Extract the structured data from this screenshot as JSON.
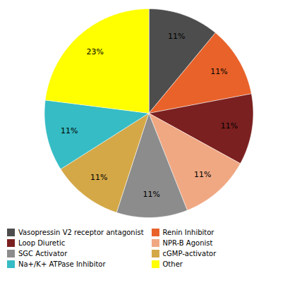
{
  "chart_data": {
    "type": "pie",
    "categories": [
      "Vasopressin V2 receptor antagonist",
      "Renin Inhibitor",
      "Loop Diuretic",
      "NPR-B Agonist",
      "SGC Activator",
      "cGMP-activator",
      "Na+/K+ ATPase Inhibitor",
      "Other"
    ],
    "values": [
      11,
      11,
      11,
      11,
      11,
      11,
      11,
      23
    ],
    "value_labels": [
      "11%",
      "11%",
      "11%",
      "11%",
      "11%",
      "11%",
      "11%",
      "23%"
    ],
    "colors": [
      "#4d4d4d",
      "#e8622a",
      "#7b2020",
      "#f0a883",
      "#8c8c8c",
      "#d4a847",
      "#36bcc4",
      "#ffff00"
    ],
    "data_labels": true,
    "legend": "bottom"
  }
}
